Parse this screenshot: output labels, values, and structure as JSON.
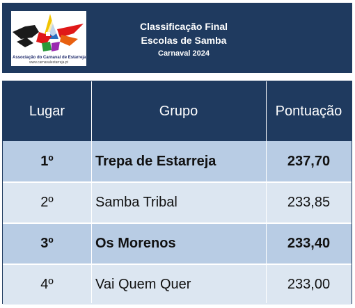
{
  "header": {
    "title": "Classificação Final",
    "subtitle": "Escolas de Samba",
    "edition": "Carnaval 2024",
    "logo_caption": "Associação do Carnaval de Estarreja",
    "logo_url": "www.carnavalestarreja.pt"
  },
  "colors": {
    "header_bg": "#1f3a5f",
    "row_highlight": "#b8cce4",
    "row_plain": "#dce6f1"
  },
  "table": {
    "columns": [
      "Lugar",
      "Grupo",
      "Pontuação"
    ],
    "rows": [
      {
        "place": "1º",
        "group": "Trepa de Estarreja",
        "score": "237,70",
        "highlight": true
      },
      {
        "place": "2º",
        "group": "Samba Tribal",
        "score": "233,85",
        "highlight": false
      },
      {
        "place": "3º",
        "group": "Os Morenos",
        "score": "233,40",
        "highlight": true
      },
      {
        "place": "4º",
        "group": "Vai Quem Quer",
        "score": "233,00",
        "highlight": false
      }
    ]
  }
}
